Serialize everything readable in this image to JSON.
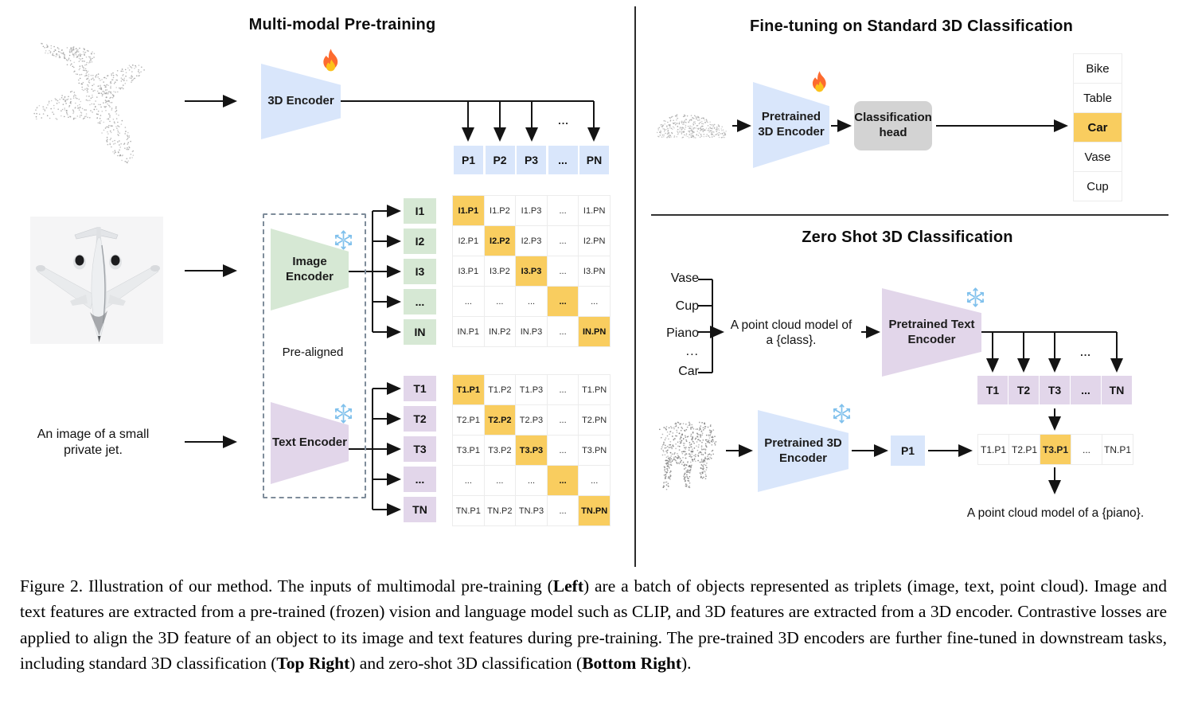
{
  "colors": {
    "blue": "#d9e6fb",
    "green": "#d6e8d4",
    "purple": "#e2d6ea",
    "orange": "#f9cd5f",
    "gray": "#d3d3d3"
  },
  "icons": {
    "trainable": "fire-icon",
    "frozen": "snowflake-icon"
  },
  "left_panel": {
    "title": "Multi-modal Pre-training",
    "encoder_3d": {
      "label": "3D Encoder"
    },
    "p_row": [
      "P1",
      "P2",
      "P3",
      "...",
      "PN"
    ],
    "p_branch_ellipsis": "...",
    "image_encoder": {
      "label": "Image Encoder"
    },
    "text_encoder": {
      "label": "Text Encoder"
    },
    "pre_aligned_label": "Pre-aligned",
    "i_labels": [
      "I1",
      "I2",
      "I3",
      "...",
      "IN"
    ],
    "t_labels": [
      "T1",
      "T2",
      "T3",
      "...",
      "TN"
    ],
    "i_matrix_rows": [
      [
        "I1.P1",
        "I1.P2",
        "I1.P3",
        "...",
        "I1.PN"
      ],
      [
        "I2.P1",
        "I2.P2",
        "I2.P3",
        "...",
        "I2.PN"
      ],
      [
        "I3.P1",
        "I3.P2",
        "I3.P3",
        "...",
        "I3.PN"
      ],
      [
        "...",
        "...",
        "...",
        "...",
        "..."
      ],
      [
        "IN.P1",
        "IN.P2",
        "IN.P3",
        "...",
        "IN.PN"
      ]
    ],
    "t_matrix_rows": [
      [
        "T1.P1",
        "T1.P2",
        "T1.P3",
        "...",
        "T1.PN"
      ],
      [
        "T2.P1",
        "T2.P2",
        "T2.P3",
        "...",
        "T2.PN"
      ],
      [
        "T3.P1",
        "T3.P2",
        "T3.P3",
        "...",
        "T3.PN"
      ],
      [
        "...",
        "...",
        "...",
        "...",
        "..."
      ],
      [
        "TN.P1",
        "TN.P2",
        "TN.P3",
        "...",
        "TN.PN"
      ]
    ],
    "text_input": "An image of a small private jet."
  },
  "top_right": {
    "title": "Fine-tuning on Standard 3D Classification",
    "encoder": {
      "label": "Pretrained 3D Encoder"
    },
    "head": {
      "label": "Classification head"
    },
    "classes": [
      {
        "label": "Bike",
        "highlight": false
      },
      {
        "label": "Table",
        "highlight": false
      },
      {
        "label": "Car",
        "highlight": true
      },
      {
        "label": "Vase",
        "highlight": false
      },
      {
        "label": "Cup",
        "highlight": false
      }
    ]
  },
  "bottom_right": {
    "title": "Zero Shot 3D Classification",
    "class_list": [
      "Vase",
      "Cup",
      "Piano",
      "...",
      "Car"
    ],
    "prompt_line1": "A point cloud model of",
    "prompt_line2": "a {class}.",
    "text_encoder": {
      "label": "Pretrained Text Encoder"
    },
    "t_row": [
      "T1",
      "T2",
      "T3",
      "...",
      "TN"
    ],
    "t_branch_ellipsis": "...",
    "encoder_3d": {
      "label": "Pretrained 3D Encoder"
    },
    "p1_label": "P1",
    "tp_row": [
      {
        "label": "T1.P1",
        "highlight": false
      },
      {
        "label": "T2.P1",
        "highlight": false
      },
      {
        "label": "T3.P1",
        "highlight": true
      },
      {
        "label": "...",
        "highlight": false
      },
      {
        "label": "TN.P1",
        "highlight": false
      }
    ],
    "result_prompt": "A point cloud model of a {piano}."
  },
  "caption": {
    "segments": [
      {
        "text": "Figure 2. Illustration of our method. The inputs of multimodal pre-training (",
        "bold": false
      },
      {
        "text": "Left",
        "bold": true
      },
      {
        "text": ") are a batch of objects represented as triplets (image, text, point cloud).  Image and text features are extracted from a pre-trained (frozen) vision and language model such as CLIP, and 3D features are extracted from a 3D encoder.  Contrastive losses are applied to align the 3D feature of an object to its image and text features during pre-training.  The pre-trained 3D encoders are further fine-tuned in downstream tasks, including standard 3D classification (",
        "bold": false
      },
      {
        "text": "Top Right",
        "bold": true
      },
      {
        "text": ") and zero-shot 3D classification (",
        "bold": false
      },
      {
        "text": "Bottom Right",
        "bold": true
      },
      {
        "text": ").",
        "bold": false
      }
    ]
  }
}
